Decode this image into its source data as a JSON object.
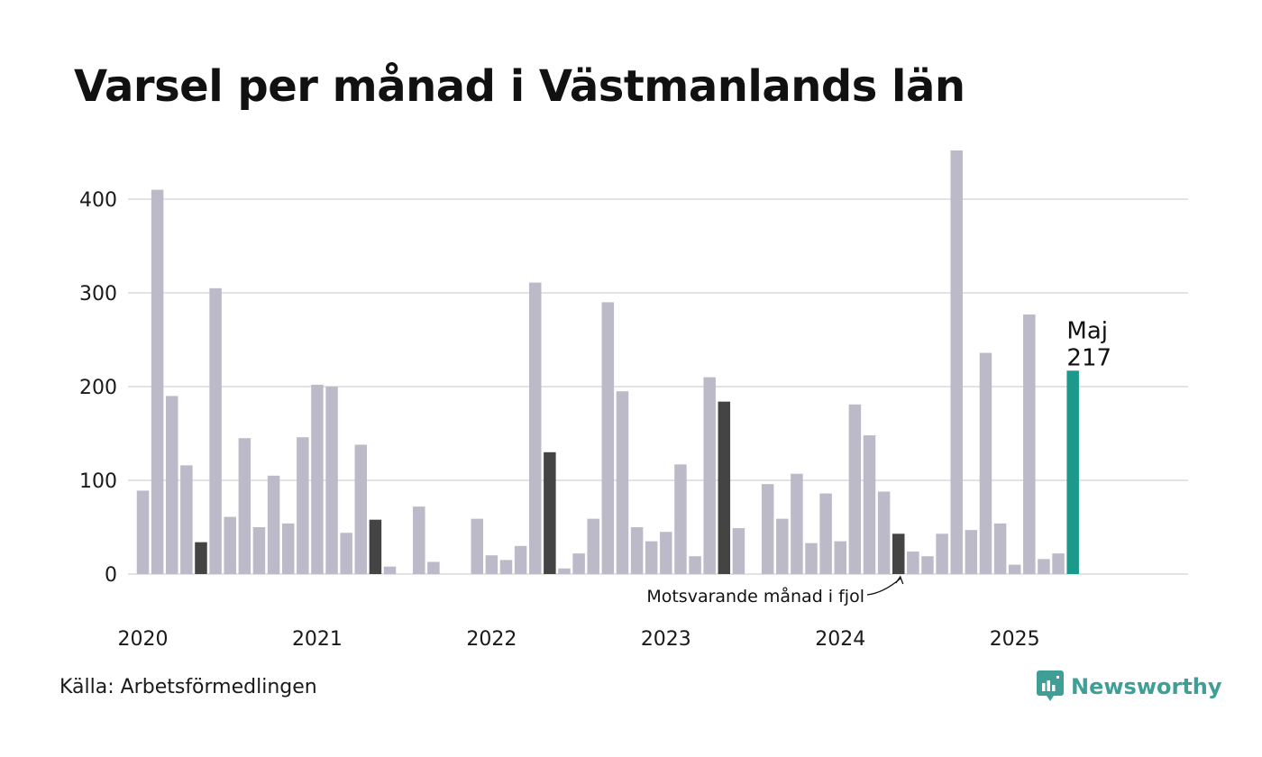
{
  "title": "Varsel per månad i Västmanlands län",
  "source": "Källa: Arbetsförmedlingen",
  "brand": {
    "name": "Newsworthy",
    "icon": "newsworthy-logo-icon"
  },
  "colors": {
    "bar": "#bcbac8",
    "same_month_last_year": "#444444",
    "current": "#1b9a8c",
    "grid": "#e3e3e3",
    "brand": "#3f9e96"
  },
  "chart_data": {
    "type": "bar",
    "title": "Varsel per månad i Västmanlands län",
    "xlabel": "",
    "ylabel": "",
    "ylim": [
      0,
      460
    ],
    "yticks": [
      0,
      100,
      200,
      300,
      400
    ],
    "grid": true,
    "year_labels": [
      "2020",
      "2021",
      "2022",
      "2023",
      "2024",
      "2025"
    ],
    "start": "2020-01",
    "end": "2025-05",
    "values": [
      89,
      410,
      190,
      116,
      34,
      305,
      61,
      145,
      50,
      105,
      54,
      146,
      202,
      200,
      44,
      138,
      58,
      8,
      0,
      72,
      13,
      0,
      0,
      59,
      20,
      15,
      30,
      311,
      130,
      6,
      22,
      59,
      290,
      195,
      50,
      35,
      45,
      117,
      19,
      210,
      184,
      49,
      0,
      96,
      59,
      107,
      33,
      86,
      35,
      181,
      148,
      88,
      43,
      24,
      19,
      43,
      452,
      47,
      236,
      54,
      10,
      277,
      16,
      22,
      217
    ],
    "highlight_same_month": [
      "2020-05",
      "2021-05",
      "2022-05",
      "2023-05",
      "2024-05"
    ],
    "highlight_current": "2025-05",
    "current_label": {
      "month": "Maj",
      "value": "217"
    },
    "annotation": "Motsvarande månad i fjol"
  }
}
